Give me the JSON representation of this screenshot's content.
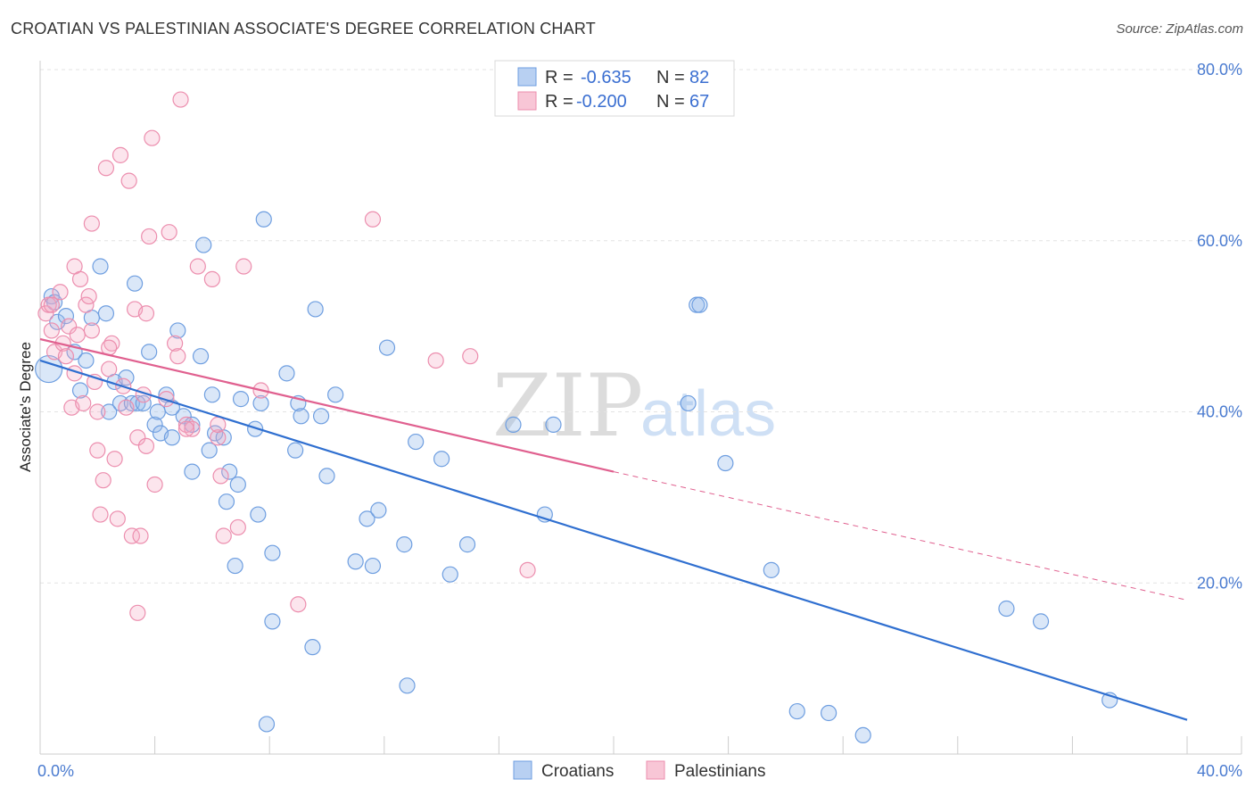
{
  "title": "CROATIAN VS PALESTINIAN ASSOCIATE'S DEGREE CORRELATION CHART",
  "source": "Source: ZipAtlas.com",
  "watermark": {
    "zip": "ZIP",
    "atlas": "atlas"
  },
  "legend": {
    "rows": [
      {
        "r_label": "R =",
        "r_value": "-0.635",
        "n_label": "N =",
        "n_value": "82"
      },
      {
        "r_label": "R =",
        "r_value": "-0.200",
        "n_label": "N =",
        "n_value": "67"
      }
    ]
  },
  "chart_data": {
    "type": "scatter",
    "title": "CROATIAN VS PALESTINIAN ASSOCIATE'S DEGREE CORRELATION CHART",
    "xlabel": "",
    "ylabel": "Associate's Degree",
    "xlim": [
      0,
      40
    ],
    "ylim": [
      0,
      80
    ],
    "x_tick_labels": [
      "0.0%",
      "40.0%"
    ],
    "y_ticks": [
      20,
      40,
      60,
      80
    ],
    "y_tick_labels": [
      "20.0%",
      "40.0%",
      "60.0%",
      "80.0%"
    ],
    "grid": true,
    "legend_position": "top-center",
    "colors": {
      "Croatians": "#4a86e8",
      "Palestinians": "#f07aa0",
      "croatians_line": "#2f6fd0",
      "palestinians_line": "#e0608f"
    },
    "series": [
      {
        "name": "Croatians",
        "R": -0.635,
        "N": 82,
        "trend": {
          "x0": 0,
          "y0": 46.0,
          "x1": 40,
          "y1": 4.0
        },
        "points": [
          [
            0.3,
            45.0
          ],
          [
            0.4,
            53.5
          ],
          [
            0.5,
            52.8
          ],
          [
            0.6,
            50.5
          ],
          [
            0.9,
            51.2
          ],
          [
            1.2,
            47.0
          ],
          [
            1.4,
            42.5
          ],
          [
            1.6,
            46.0
          ],
          [
            1.8,
            51.0
          ],
          [
            2.1,
            57.0
          ],
          [
            2.3,
            51.5
          ],
          [
            2.4,
            40.0
          ],
          [
            2.6,
            43.5
          ],
          [
            2.8,
            41.0
          ],
          [
            3.0,
            44.0
          ],
          [
            3.2,
            41.0
          ],
          [
            3.3,
            55.0
          ],
          [
            3.4,
            41.0
          ],
          [
            3.6,
            41.0
          ],
          [
            3.8,
            47.0
          ],
          [
            4.0,
            38.5
          ],
          [
            4.1,
            40.0
          ],
          [
            4.2,
            37.5
          ],
          [
            4.4,
            42.0
          ],
          [
            4.6,
            37.0
          ],
          [
            4.8,
            49.5
          ],
          [
            5.0,
            39.5
          ],
          [
            5.3,
            38.5
          ],
          [
            5.3,
            33.0
          ],
          [
            5.6,
            46.5
          ],
          [
            5.7,
            59.5
          ],
          [
            5.9,
            35.5
          ],
          [
            6.0,
            42.0
          ],
          [
            6.1,
            37.5
          ],
          [
            6.4,
            37.0
          ],
          [
            6.5,
            29.5
          ],
          [
            6.6,
            33.0
          ],
          [
            6.8,
            22.0
          ],
          [
            6.9,
            31.5
          ],
          [
            7.0,
            41.5
          ],
          [
            7.5,
            38.0
          ],
          [
            7.6,
            28.0
          ],
          [
            7.7,
            41.0
          ],
          [
            7.8,
            62.5
          ],
          [
            8.1,
            23.5
          ],
          [
            8.1,
            15.5
          ],
          [
            8.6,
            44.5
          ],
          [
            8.9,
            35.5
          ],
          [
            9.0,
            41.0
          ],
          [
            9.1,
            39.5
          ],
          [
            9.5,
            12.5
          ],
          [
            9.6,
            52.0
          ],
          [
            9.8,
            39.5
          ],
          [
            10.0,
            32.5
          ],
          [
            10.3,
            42.0
          ],
          [
            11.0,
            22.5
          ],
          [
            11.4,
            27.5
          ],
          [
            11.6,
            22.0
          ],
          [
            11.8,
            28.5
          ],
          [
            12.1,
            47.5
          ],
          [
            12.7,
            24.5
          ],
          [
            12.8,
            8.0
          ],
          [
            13.1,
            36.5
          ],
          [
            14.0,
            34.5
          ],
          [
            14.3,
            21.0
          ],
          [
            14.9,
            24.5
          ],
          [
            16.5,
            38.5
          ],
          [
            17.6,
            28.0
          ],
          [
            17.9,
            38.5
          ],
          [
            22.6,
            41.0
          ],
          [
            22.9,
            52.5
          ],
          [
            23.0,
            52.5
          ],
          [
            23.9,
            34.0
          ],
          [
            25.5,
            21.5
          ],
          [
            26.4,
            5.0
          ],
          [
            27.5,
            4.8
          ],
          [
            28.7,
            2.2
          ],
          [
            33.7,
            17.0
          ],
          [
            34.9,
            15.5
          ],
          [
            37.3,
            6.3
          ],
          [
            7.9,
            3.5
          ],
          [
            4.6,
            40.5
          ]
        ]
      },
      {
        "name": "Palestinians",
        "R": -0.2,
        "N": 67,
        "trend": {
          "x0": 0,
          "y0": 48.5,
          "x1": 20,
          "y1": 33.0,
          "dash_x1": 40,
          "dash_y1": 18.0
        },
        "points": [
          [
            0.2,
            51.5
          ],
          [
            0.3,
            52.5
          ],
          [
            0.4,
            49.5
          ],
          [
            0.5,
            47.0
          ],
          [
            0.7,
            54.0
          ],
          [
            0.8,
            48.0
          ],
          [
            0.9,
            46.5
          ],
          [
            1.0,
            50.0
          ],
          [
            1.1,
            40.5
          ],
          [
            1.2,
            57.0
          ],
          [
            1.3,
            49.0
          ],
          [
            1.4,
            55.5
          ],
          [
            1.5,
            41.0
          ],
          [
            1.6,
            52.5
          ],
          [
            1.7,
            53.5
          ],
          [
            1.8,
            62.0
          ],
          [
            1.9,
            43.5
          ],
          [
            2.0,
            35.5
          ],
          [
            2.1,
            28.0
          ],
          [
            2.2,
            32.0
          ],
          [
            2.3,
            68.5
          ],
          [
            2.4,
            45.0
          ],
          [
            2.5,
            48.0
          ],
          [
            2.6,
            34.5
          ],
          [
            2.7,
            27.5
          ],
          [
            2.8,
            70.0
          ],
          [
            2.9,
            43.0
          ],
          [
            3.0,
            40.5
          ],
          [
            3.1,
            67.0
          ],
          [
            3.2,
            25.5
          ],
          [
            3.3,
            52.0
          ],
          [
            3.4,
            37.0
          ],
          [
            3.4,
            16.5
          ],
          [
            3.5,
            25.5
          ],
          [
            3.7,
            51.5
          ],
          [
            3.7,
            36.0
          ],
          [
            3.8,
            60.5
          ],
          [
            3.9,
            72.0
          ],
          [
            4.0,
            31.5
          ],
          [
            4.4,
            41.5
          ],
          [
            4.5,
            61.0
          ],
          [
            4.7,
            48.0
          ],
          [
            4.8,
            46.5
          ],
          [
            4.9,
            76.5
          ],
          [
            5.1,
            38.5
          ],
          [
            5.3,
            38.0
          ],
          [
            5.5,
            57.0
          ],
          [
            6.0,
            55.5
          ],
          [
            6.2,
            37.0
          ],
          [
            6.3,
            32.5
          ],
          [
            6.4,
            25.5
          ],
          [
            6.9,
            26.5
          ],
          [
            7.1,
            57.0
          ],
          [
            7.7,
            42.5
          ],
          [
            9.0,
            17.5
          ],
          [
            11.6,
            62.5
          ],
          [
            13.8,
            46.0
          ],
          [
            15.0,
            46.5
          ],
          [
            17.0,
            21.5
          ],
          [
            1.8,
            49.5
          ],
          [
            6.2,
            38.5
          ],
          [
            2.4,
            47.5
          ],
          [
            0.4,
            52.5
          ],
          [
            1.2,
            44.5
          ],
          [
            3.6,
            42.0
          ],
          [
            2.0,
            40.0
          ],
          [
            5.1,
            38.0
          ]
        ]
      }
    ]
  },
  "bottom_legend": [
    {
      "label": "Croatians"
    },
    {
      "label": "Palestinians"
    }
  ]
}
